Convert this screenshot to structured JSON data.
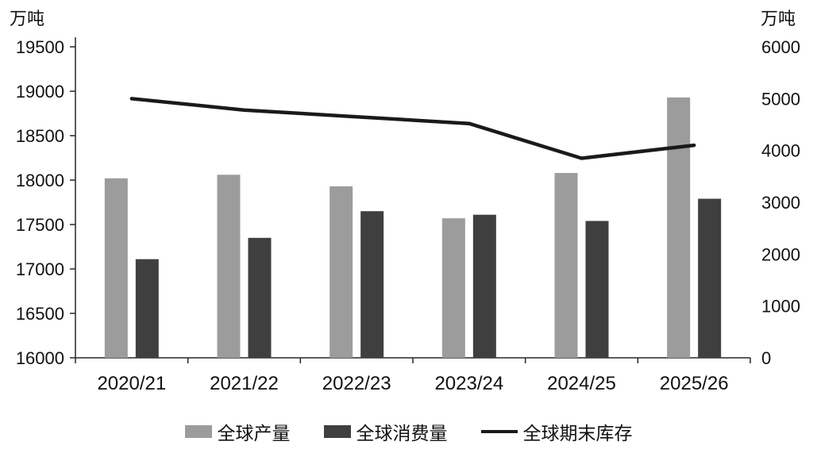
{
  "colors": {
    "production": "#9c9c9c",
    "consumption": "#3f3f3f",
    "line": "#1a1a1a",
    "axis": "#262626",
    "text": "#111111"
  },
  "chart_data": {
    "type": "bar+line",
    "categories": [
      "2020/21",
      "2021/22",
      "2022/23",
      "2023/24",
      "2024/25",
      "2025/26"
    ],
    "series": [
      {
        "name": "全球产量",
        "type": "bar",
        "axis": "left",
        "values": [
          18020,
          18060,
          17930,
          17570,
          18080,
          18930
        ]
      },
      {
        "name": "全球消费量",
        "type": "bar",
        "axis": "left",
        "values": [
          17110,
          17350,
          17650,
          17610,
          17540,
          17790
        ]
      },
      {
        "name": "全球期末库存",
        "type": "line",
        "axis": "right",
        "values": [
          5000,
          4780,
          4650,
          4520,
          3850,
          4100
        ]
      }
    ],
    "left_axis": {
      "title": "万吨",
      "min": 16000,
      "max": 19500,
      "step": 500
    },
    "right_axis": {
      "title": "万吨",
      "min": 0,
      "max": 6000,
      "step": 1000
    },
    "legend_position": "bottom",
    "grid": false,
    "title": ""
  }
}
